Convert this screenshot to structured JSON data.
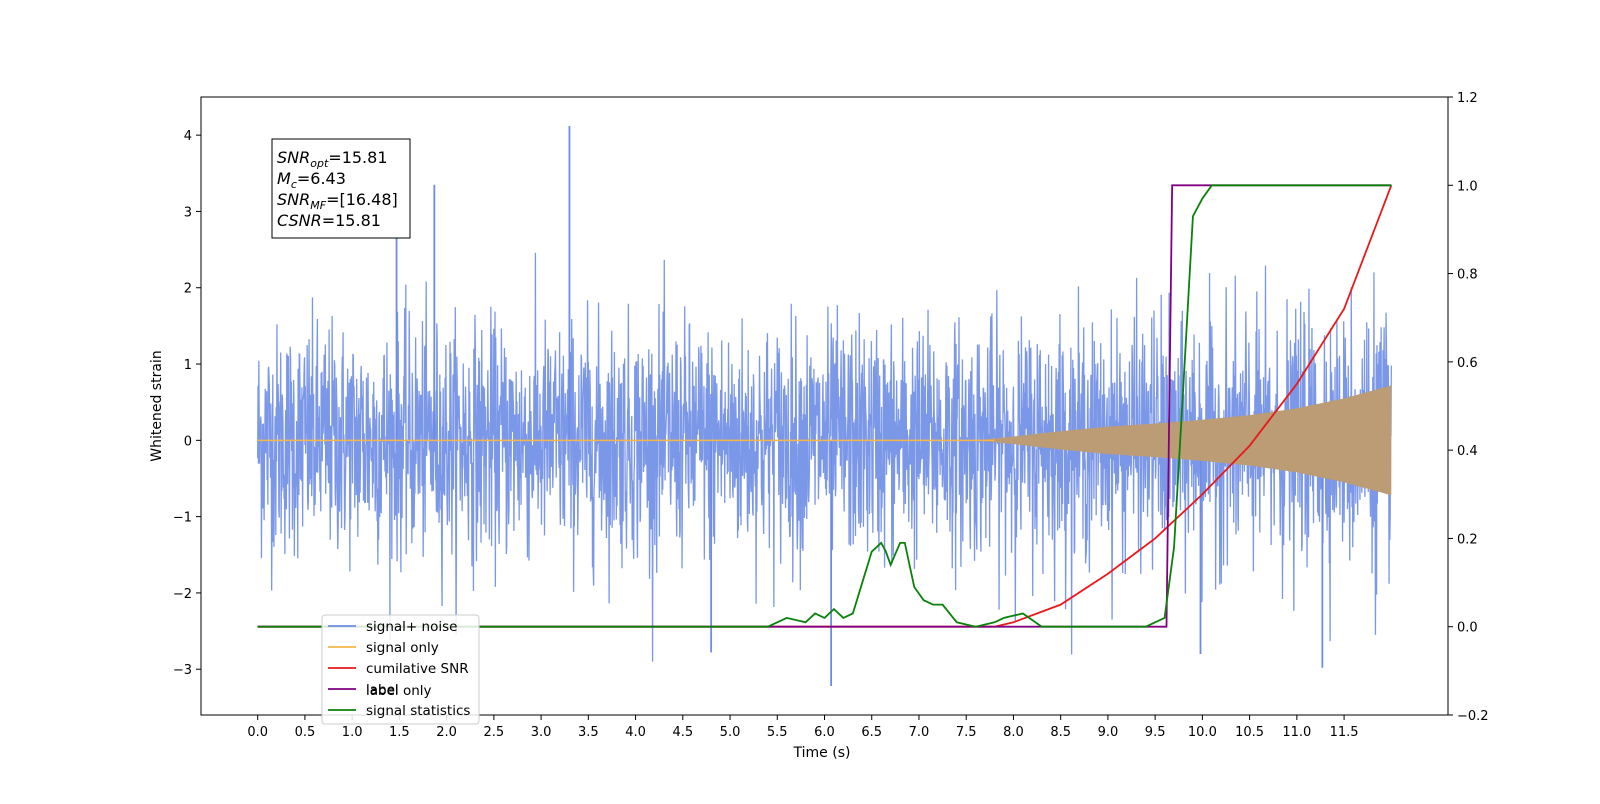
{
  "chart_data": {
    "type": "line",
    "xlabel": "Time (s)",
    "ylabel": "Whitened strain",
    "xlim": [
      -0.6,
      12.6
    ],
    "ylim": [
      -3.6,
      4.5
    ],
    "y2lim": [
      -0.2,
      1.2
    ],
    "x_ticks": [
      "0.0",
      "0.5",
      "1.0",
      "1.5",
      "2.0",
      "2.5",
      "3.0",
      "3.5",
      "4.0",
      "4.5",
      "5.0",
      "5.5",
      "6.0",
      "6.5",
      "7.0",
      "7.5",
      "8.0",
      "8.5",
      "9.0",
      "9.5",
      "10.0",
      "10.5",
      "11.0",
      "11.5"
    ],
    "y_ticks": [
      "4",
      "3",
      "2",
      "1",
      "0",
      "−1",
      "−2",
      "−3"
    ],
    "y2_ticks": [
      "1.2",
      "1.0",
      "0.8",
      "0.6",
      "0.4",
      "0.2",
      "0.0",
      "−0.2"
    ],
    "annotation": [
      {
        "sym": "SNR",
        "sub": "opt",
        "value": "=15.81"
      },
      {
        "sym": "M",
        "sub": "c",
        "value": "=6.43"
      },
      {
        "sym": "SNR",
        "sub": "MF",
        "value": "=[16.48]"
      },
      {
        "sym": "CSNR",
        "sub": "",
        "value": "=15.81"
      }
    ],
    "legend": [
      "signal+ noise",
      "signal only",
      "cumilative SNR",
      "label",
      "signal statistics"
    ],
    "legend_overlap": {
      "text": "label only",
      "color": "#bbbbbb"
    },
    "legend_position": "lower-left",
    "grid": false,
    "colors": {
      "noise": "#6d8ce6",
      "signal": "#f5b74a",
      "signal_fill": "#bb9c75",
      "csnr": "#e8191b",
      "label": "#800080",
      "stats": "#0a820a"
    },
    "series": {
      "noise": {
        "x_start": 0.0,
        "x_end": 12.0,
        "samples": 3000,
        "amplitude_std": 0.75,
        "peaks": [
          [
            3.3,
            4.12
          ],
          [
            1.47,
            2.7
          ],
          [
            1.87,
            3.35
          ],
          [
            6.07,
            -3.22
          ],
          [
            11.27,
            -2.98
          ],
          [
            4.8,
            -2.78
          ],
          [
            9.98,
            -2.8
          ]
        ]
      },
      "signal": {
        "x_start": 0.0,
        "x_end": 12.0,
        "envelope": [
          [
            0,
            0.0
          ],
          [
            7.6,
            0.0
          ],
          [
            8.0,
            0.05
          ],
          [
            8.5,
            0.12
          ],
          [
            9.0,
            0.18
          ],
          [
            9.5,
            0.22
          ],
          [
            10.0,
            0.27
          ],
          [
            10.5,
            0.33
          ],
          [
            11.0,
            0.42
          ],
          [
            11.5,
            0.55
          ],
          [
            12.0,
            0.72
          ]
        ]
      },
      "cumulative_snr": {
        "x": [
          0,
          7.8,
          8.0,
          8.5,
          9.0,
          9.5,
          10.0,
          10.5,
          11.0,
          11.5,
          12.0
        ],
        "y": [
          0.0,
          0.0,
          0.01,
          0.05,
          0.12,
          0.2,
          0.3,
          0.41,
          0.55,
          0.72,
          1.0
        ]
      },
      "label": {
        "x": [
          0,
          9.62,
          9.68,
          12.0
        ],
        "y": [
          0.0,
          0.0,
          1.0,
          1.0
        ]
      },
      "signal_statistics": {
        "x": [
          0,
          5.4,
          5.6,
          5.8,
          5.9,
          6.0,
          6.1,
          6.2,
          6.3,
          6.4,
          6.5,
          6.6,
          6.65,
          6.7,
          6.8,
          6.85,
          6.9,
          6.95,
          7.05,
          7.15,
          7.25,
          7.4,
          7.6,
          7.8,
          7.9,
          8.1,
          8.3,
          8.5,
          9.0,
          9.4,
          9.6,
          9.7,
          9.8,
          9.9,
          10.0,
          10.1,
          10.2,
          12.0
        ],
        "y": [
          0.0,
          0.0,
          0.02,
          0.01,
          0.03,
          0.02,
          0.04,
          0.02,
          0.03,
          0.1,
          0.17,
          0.19,
          0.17,
          0.14,
          0.19,
          0.19,
          0.14,
          0.09,
          0.06,
          0.05,
          0.05,
          0.01,
          0.0,
          0.01,
          0.02,
          0.03,
          0.0,
          0.0,
          0.0,
          0.0,
          0.02,
          0.18,
          0.55,
          0.93,
          0.97,
          1.0,
          1.0,
          1.0
        ]
      }
    }
  }
}
